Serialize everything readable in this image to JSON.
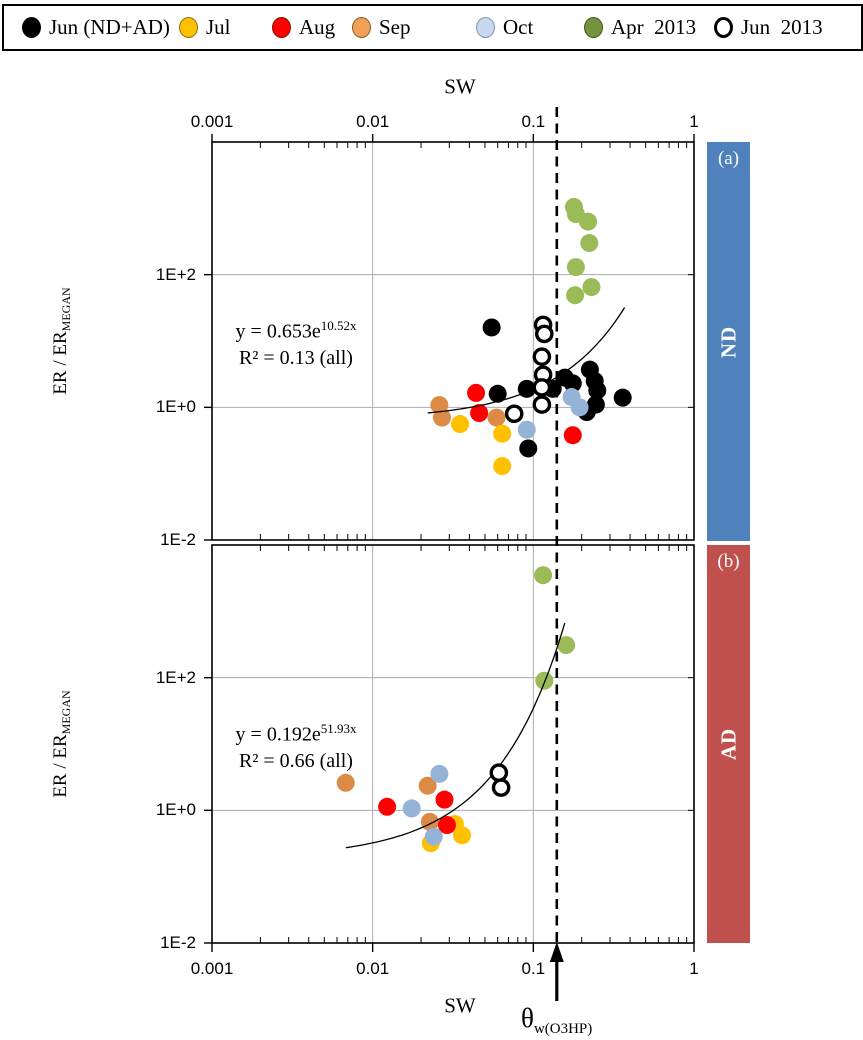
{
  "legend": {
    "items": [
      {
        "label": "Jun (ND+AD)",
        "fill": "#000000",
        "border": "#000000",
        "open": false
      },
      {
        "label": "Jul",
        "fill": "#FFC000",
        "border": "#8a6d00",
        "open": false
      },
      {
        "label": "Aug",
        "fill": "#FF0000",
        "border": "#7f1400",
        "open": false
      },
      {
        "label": "Sep",
        "fill": "#F0A057",
        "border": "#8c5a22",
        "open": false
      },
      {
        "label": "Oct",
        "fill": "#C8D8EE",
        "border": "#7d93ad",
        "open": false
      },
      {
        "label": "Apr  2013",
        "fill": "#76923C",
        "border": "#42511f",
        "open": false
      },
      {
        "label": "Jun  2013",
        "fill": "#FFFFFF",
        "border": "#000000",
        "open": true
      }
    ]
  },
  "axes": {
    "x_top": {
      "title": "SW",
      "tick_labels": [
        "0.001",
        "0.01",
        "0.1",
        "1"
      ]
    },
    "x_bottom": {
      "title": "SW",
      "tick_labels": [
        "0.001",
        "0.01",
        "0.1",
        "1"
      ]
    },
    "y_left": {
      "text": "ER / ER",
      "sub": "MEGAN",
      "tick_labels": [
        "1E+2",
        "1E+0",
        "1E-2"
      ]
    }
  },
  "reference": {
    "theta": "θ",
    "theta_sub": "w(O3HP)",
    "x_value": 0.14
  },
  "chart_data": {
    "type": "scatter",
    "x_axis": {
      "label": "SW",
      "scale": "log",
      "min": 0.001,
      "max": 1,
      "ticks": [
        0.001,
        0.01,
        0.1,
        1
      ],
      "grid": [
        0.01,
        0.1
      ]
    },
    "y_axis": {
      "label": "ER / ER_MEGAN",
      "scale": "log",
      "min": 0.01,
      "max": 10000,
      "ticks": [
        0.01,
        1,
        100
      ],
      "grid": [
        1,
        100
      ]
    },
    "reference_line": {
      "x": 0.14,
      "label": "θ_w(O3HP)",
      "style": "dashed"
    },
    "panels": [
      {
        "id": "a",
        "panel_tag": "(a)",
        "band_label": "ND",
        "band_color": "#4F81BD",
        "fit": {
          "a": 0.653,
          "b": 10.52,
          "x_min": 0.022,
          "x_max": 0.37,
          "eq_prefix": "y = 0.653e",
          "eq_sup": "10.52x",
          "r2": "R² = 0.13 (all)"
        },
        "series": [
          {
            "name": "Sep",
            "color": "#DB8B45",
            "points": [
              [
                0.026,
                1.08
              ],
              [
                0.027,
                0.7
              ],
              [
                0.059,
                0.7
              ]
            ]
          },
          {
            "name": "Jul",
            "color": "#FFC000",
            "points": [
              [
                0.035,
                0.56
              ],
              [
                0.064,
                0.4
              ],
              [
                0.064,
                0.13
              ]
            ]
          },
          {
            "name": "Aug",
            "color": "#FF0000",
            "points": [
              [
                0.044,
                1.65
              ],
              [
                0.046,
                0.82
              ],
              [
                0.176,
                0.38
              ]
            ]
          },
          {
            "name": "Jun (ND+AD)",
            "color": "#000000",
            "points": [
              [
                0.055,
                16
              ],
              [
                0.06,
                1.6
              ],
              [
                0.091,
                1.9
              ],
              [
                0.093,
                0.24
              ],
              [
                0.132,
                1.9
              ],
              [
                0.157,
                2.8
              ],
              [
                0.176,
                2.3
              ],
              [
                0.215,
                0.85
              ],
              [
                0.225,
                3.7
              ],
              [
                0.241,
                2.5
              ],
              [
                0.245,
                1.1
              ],
              [
                0.25,
                1.8
              ],
              [
                0.36,
                1.4
              ]
            ]
          },
          {
            "name": "Oct",
            "color": "#95B3D7",
            "points": [
              [
                0.091,
                0.46
              ],
              [
                0.173,
                1.43
              ],
              [
                0.194,
                1.0
              ]
            ]
          },
          {
            "name": "Apr 2013",
            "color": "#9BBB59",
            "points": [
              [
                0.179,
                1050
              ],
              [
                0.184,
                820
              ],
              [
                0.219,
                630
              ],
              [
                0.223,
                300
              ],
              [
                0.184,
                130
              ],
              [
                0.23,
                65
              ],
              [
                0.182,
                49
              ]
            ]
          },
          {
            "name": "Jun 2013",
            "color": "#000000",
            "open": true,
            "points": [
              [
                0.115,
                17.5
              ],
              [
                0.117,
                12.8
              ],
              [
                0.113,
                5.8
              ],
              [
                0.115,
                3.1
              ],
              [
                0.113,
                2.0
              ],
              [
                0.113,
                1.1
              ],
              [
                0.076,
                0.8
              ]
            ]
          }
        ]
      },
      {
        "id": "b",
        "panel_tag": "(b)",
        "band_label": "AD",
        "band_color": "#C0504D",
        "fit": {
          "a": 0.192,
          "b": 51.93,
          "x_min": 0.0068,
          "x_max": 0.157,
          "eq_prefix": "y = 0.192e",
          "eq_sup": "51.93x",
          "r2": "R² = 0.66 (all)"
        },
        "series": [
          {
            "name": "Sep",
            "color": "#DB8B45",
            "points": [
              [
                0.0068,
                2.6
              ],
              [
                0.022,
                2.35
              ],
              [
                0.0227,
                0.67
              ]
            ]
          },
          {
            "name": "Jul",
            "color": "#FFC000",
            "points": [
              [
                0.0325,
                0.62
              ],
              [
                0.036,
                0.42
              ],
              [
                0.023,
                0.32
              ]
            ]
          },
          {
            "name": "Aug",
            "color": "#FF0000",
            "points": [
              [
                0.0123,
                1.13
              ],
              [
                0.028,
                1.45
              ],
              [
                0.029,
                0.6
              ]
            ]
          },
          {
            "name": "Oct",
            "color": "#95B3D7",
            "points": [
              [
                0.026,
                3.55
              ],
              [
                0.0175,
                1.07
              ],
              [
                0.024,
                0.4
              ]
            ]
          },
          {
            "name": "Apr 2013",
            "color": "#9BBB59",
            "points": [
              [
                0.115,
                3500
              ],
              [
                0.16,
                310
              ],
              [
                0.117,
                90
              ]
            ]
          },
          {
            "name": "Jun 2013",
            "color": "#000000",
            "open": true,
            "points": [
              [
                0.061,
                3.7
              ],
              [
                0.063,
                2.2
              ]
            ]
          }
        ]
      }
    ]
  }
}
